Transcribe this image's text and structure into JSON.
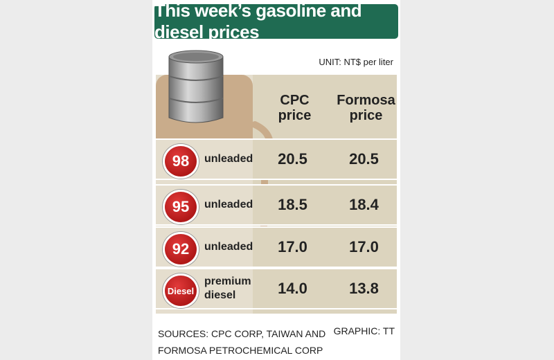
{
  "title": "This week’s gasoline and diesel prices",
  "unit": "UNIT: NT$ per liter",
  "headers": {
    "col1": [
      "CPC",
      "price"
    ],
    "col2": [
      "Formosa",
      "price"
    ]
  },
  "rows": [
    {
      "badge": "98",
      "label": "unleaded",
      "cpc": "20.5",
      "formosa": "20.5"
    },
    {
      "badge": "95",
      "label": "unleaded",
      "cpc": "18.5",
      "formosa": "18.4"
    },
    {
      "badge": "92",
      "label": "unleaded",
      "cpc": "17.0",
      "formosa": "17.0"
    },
    {
      "badge": "Diesel",
      "label_line1": "premium",
      "label_line2": "diesel",
      "cpc": "14.0",
      "formosa": "13.8"
    }
  ],
  "sources": [
    "SOURCES: CPC CORP, TAIWAN AND",
    "FORMOSA PETROCHEMICAL CORP"
  ],
  "credit": "GRAPHIC: TT",
  "colors": {
    "title_bg": "#1f6b52",
    "badge": "#c41e1e",
    "row_bg": "#dcd4be"
  },
  "chart_data": {
    "type": "table",
    "title": "This week’s gasoline and diesel prices",
    "unit": "UNIT: NT$ per liter",
    "columns": [
      "CPC price",
      "Formosa price"
    ],
    "rows": [
      {
        "grade": "98 unleaded",
        "values": [
          20.5,
          20.5
        ]
      },
      {
        "grade": "95 unleaded",
        "values": [
          18.5,
          18.4
        ]
      },
      {
        "grade": "92 unleaded",
        "values": [
          17.0,
          17.0
        ]
      },
      {
        "grade": "Diesel premium diesel",
        "values": [
          14.0,
          13.8
        ]
      }
    ]
  }
}
